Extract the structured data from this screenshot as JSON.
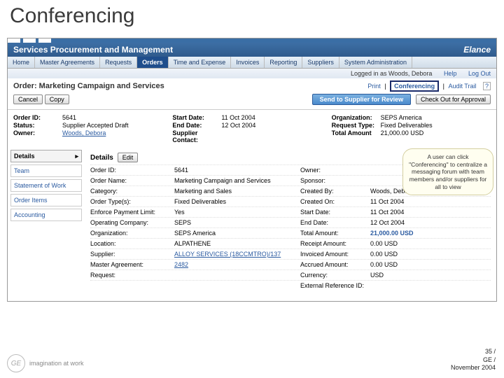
{
  "slide": {
    "title": "Conferencing"
  },
  "header": {
    "left": "Services Procurement and Management",
    "right": "Elance"
  },
  "nav": {
    "tabs": [
      "Home",
      "Master Agreements",
      "Requests",
      "Orders",
      "Time and Expense",
      "Invoices",
      "Reporting",
      "Suppliers",
      "System Administration"
    ],
    "activeIndex": 3
  },
  "userbar": {
    "loggedin": "Logged in as Woods, Debora",
    "help": "Help",
    "logout": "Log Out"
  },
  "titlerow": {
    "title": "Order: Marketing Campaign and Services",
    "print": "Print",
    "conferencing": "Conferencing",
    "audit": "Audit Trail"
  },
  "btnrow": {
    "cancel": "Cancel",
    "copy": "Copy",
    "review": "Send to Supplier for Review",
    "checkout": "Check Out for Approval"
  },
  "topinfo": {
    "col1": [
      {
        "l": "Order ID:",
        "v": "5641"
      },
      {
        "l": "Status:",
        "v": "Supplier Accepted Draft"
      },
      {
        "l": "Owner:",
        "v": "Woods, Debora",
        "link": true
      }
    ],
    "col2": [
      {
        "l": "Start Date:",
        "v": "11 Oct 2004"
      },
      {
        "l": "End Date:",
        "v": "12 Oct 2004"
      },
      {
        "l": "Supplier Contact:",
        "v": ""
      }
    ],
    "col3": [
      {
        "l": "Organization:",
        "v": "SEPS America"
      },
      {
        "l": "Request Type:",
        "v": "Fixed Deliverables"
      },
      {
        "l": "Total Amount",
        "v": "21,000.00 USD"
      }
    ]
  },
  "side": {
    "items": [
      "Details",
      "Team",
      "Statement of Work",
      "Order Items",
      "Accounting"
    ],
    "selected": 0
  },
  "details": {
    "section": "Details",
    "edit": "Edit",
    "rows": [
      [
        "Order ID:",
        "5641",
        "Owner:",
        ""
      ],
      [
        "Order Name:",
        "Marketing Campaign and Services",
        "Sponsor:",
        ""
      ],
      [
        "Category:",
        "Marketing and Sales",
        "Created By:",
        "Woods, Debora"
      ],
      [
        "Order Type(s):",
        "Fixed Deliverables",
        "Created On:",
        "11 Oct 2004"
      ],
      [
        "Enforce Payment Limit:",
        "Yes",
        "Start Date:",
        "11 Oct 2004"
      ],
      [
        "Operating Company:",
        "SEPS",
        "End Date:",
        "12 Oct 2004"
      ],
      [
        "Organization:",
        "SEPS America",
        "Total Amount:",
        "21,000.00 USD"
      ],
      [
        "Location:",
        "ALPATHENE",
        "Receipt Amount:",
        "0.00 USD"
      ],
      [
        "Supplier:",
        "ALLOY SERVICES (18CCMTRO)/137",
        "Invoiced Amount:",
        "0.00 USD"
      ],
      [
        "Master Agreement:",
        "2482",
        "Accrued Amount:",
        "0.00 USD"
      ],
      [
        "Request:",
        "",
        "Currency:",
        "USD"
      ],
      [
        "",
        "",
        "External Reference ID:",
        ""
      ]
    ],
    "linkCells": {
      "8-1": true,
      "9-1": true
    },
    "boldBlue": {
      "6-3": true
    }
  },
  "callout": "A user can click \"Conferencing\" to centralize a messaging forum with team members and/or suppliers for all to view",
  "footer": {
    "tag": "imagination at work",
    "pg1": "35 /",
    "pg2": "GE /",
    "pg3": "November 2004"
  }
}
